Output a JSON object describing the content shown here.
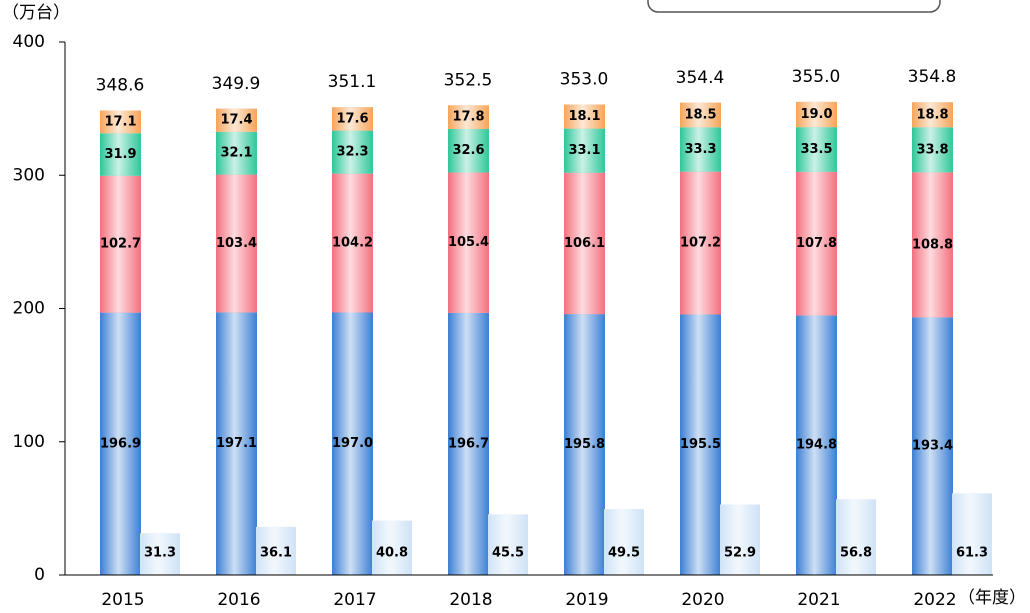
{
  "chart_data": {
    "type": "bar",
    "stacked": true,
    "y_label": "（万台）",
    "x_label": "（年度）",
    "categories": [
      "2015",
      "2016",
      "2017",
      "2018",
      "2019",
      "2020",
      "2021",
      "2022"
    ],
    "series": [
      {
        "color": "#3b7fd4",
        "stacked": true,
        "values": [
          196.9,
          197.1,
          197.0,
          196.7,
          195.8,
          195.5,
          194.8,
          193.4
        ],
        "value_labels": [
          "196.9",
          "197.1",
          "197.0",
          "196.7",
          "195.8",
          "195.5",
          "194.8",
          "193.4"
        ]
      },
      {
        "color": "#f4707e",
        "stacked": true,
        "values": [
          102.7,
          103.4,
          104.2,
          105.4,
          106.1,
          107.2,
          107.8,
          108.8
        ],
        "value_labels": [
          "102.7",
          "103.4",
          "104.2",
          "105.4",
          "106.1",
          "107.2",
          "107.8",
          "108.8"
        ]
      },
      {
        "color": "#2ec79a",
        "stacked": true,
        "values": [
          31.9,
          32.1,
          32.3,
          32.6,
          33.1,
          33.3,
          33.5,
          33.8
        ],
        "value_labels": [
          "31.9",
          "32.1",
          "32.3",
          "32.6",
          "33.1",
          "33.3",
          "33.5",
          "33.8"
        ]
      },
      {
        "color": "#f5a55a",
        "stacked": true,
        "values": [
          17.1,
          17.4,
          17.6,
          17.8,
          18.1,
          18.5,
          19.0,
          18.8
        ],
        "value_labels": [
          "17.1",
          "17.4",
          "17.6",
          "17.8",
          "18.1",
          "18.5",
          "19.0",
          "18.8"
        ]
      },
      {
        "color": "#cfe3f7",
        "stacked": false,
        "values": [
          31.3,
          36.1,
          40.8,
          45.5,
          49.5,
          52.9,
          56.8,
          61.3
        ],
        "value_labels": [
          "31.3",
          "36.1",
          "40.8",
          "45.5",
          "49.5",
          "52.9",
          "56.8",
          "61.3"
        ]
      }
    ],
    "totals": {
      "values": [
        348.6,
        349.9,
        351.1,
        352.5,
        353.0,
        354.4,
        355.0,
        354.8
      ],
      "value_labels": [
        "348.6",
        "349.9",
        "351.1",
        "352.5",
        "353.0",
        "354.4",
        "355.0",
        "354.8"
      ]
    },
    "ylim": [
      0,
      400
    ],
    "yticks": [
      0,
      100,
      200,
      300,
      400
    ]
  }
}
